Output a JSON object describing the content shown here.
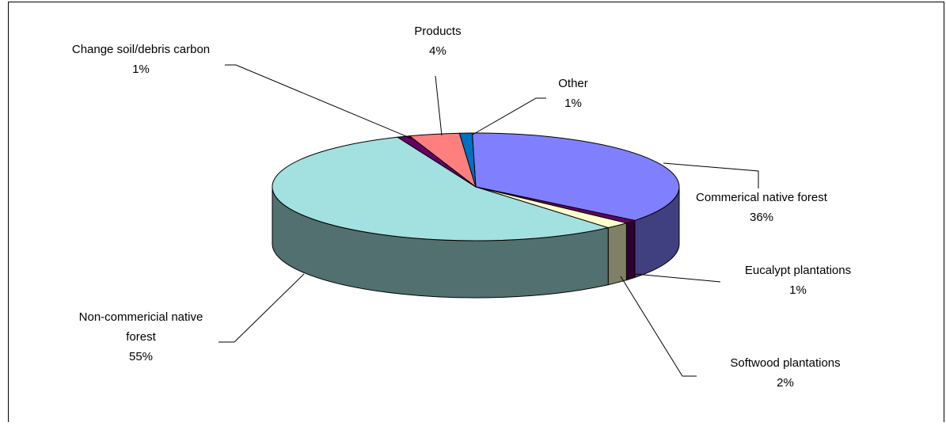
{
  "chart_data": {
    "type": "pie",
    "title": "",
    "three_d": true,
    "legend": "none",
    "slices": [
      {
        "name": "Commerical native forest",
        "label": "36%",
        "value": 36,
        "color": "#8080FF"
      },
      {
        "name": "Eucalypt plantations",
        "label": "1%",
        "value": 1,
        "color": "#660066"
      },
      {
        "name": "Softwood plantations",
        "label": "2%",
        "value": 2,
        "color": "#FFFFCC"
      },
      {
        "name": "Non-commericial native forest",
        "name_lines": [
          "Non-commericial native",
          "forest"
        ],
        "label": "55%",
        "value": 55,
        "color": "#A3E0E0"
      },
      {
        "name": "Change soil/debris carbon",
        "label": "1%",
        "value": 1,
        "color": "#660066"
      },
      {
        "name": "Products",
        "label": "4%",
        "value": 4,
        "color": "#FF7F7F"
      },
      {
        "name": "Other",
        "label": "1%",
        "value": 1,
        "color": "#0070C0"
      }
    ]
  }
}
